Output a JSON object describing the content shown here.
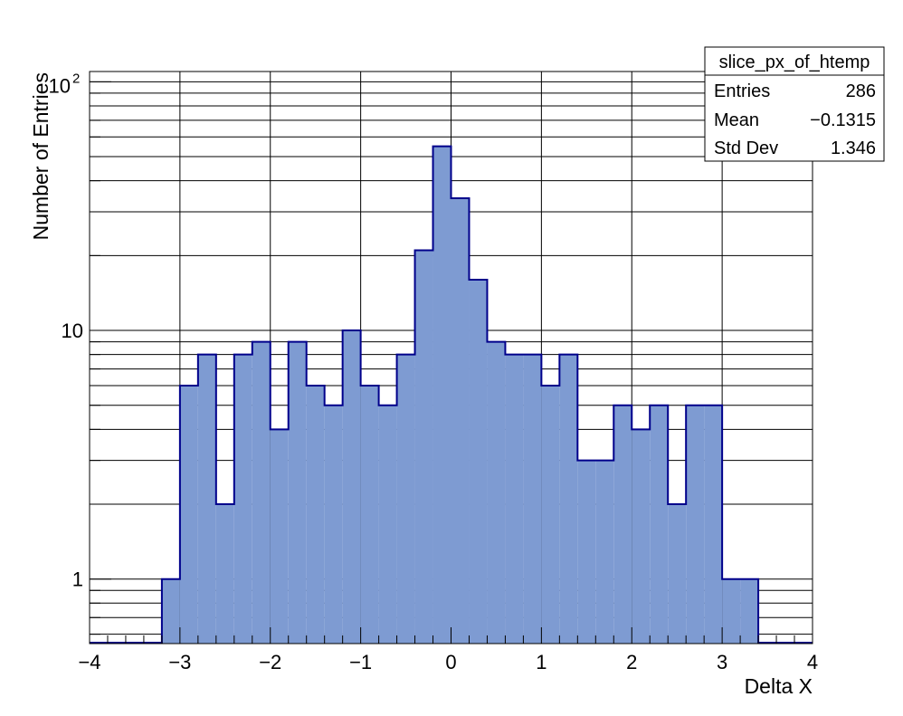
{
  "chart_data": {
    "type": "bar",
    "histogram": true,
    "xlabel": "Delta X",
    "ylabel": "Number of Entries",
    "xlim": [
      -4,
      4
    ],
    "ylim": [
      0.55,
      110
    ],
    "y_scale": "log",
    "grid": true,
    "bin_width": 0.2,
    "x_ticks": [
      "−4",
      "−3",
      "−2",
      "−1",
      "0",
      "1",
      "2",
      "3",
      "4"
    ],
    "x_tick_values": [
      -4,
      -3,
      -2,
      -1,
      0,
      1,
      2,
      3,
      4
    ],
    "y_ticks": [
      {
        "value": 1,
        "label": "1"
      },
      {
        "value": 10,
        "label": "10"
      },
      {
        "value": 100,
        "label_base": "10",
        "label_exp": "2"
      }
    ],
    "bins": [
      {
        "x": -3.2,
        "value": 1
      },
      {
        "x": -3.0,
        "value": 6
      },
      {
        "x": -2.8,
        "value": 8
      },
      {
        "x": -2.6,
        "value": 2
      },
      {
        "x": -2.4,
        "value": 8
      },
      {
        "x": -2.2,
        "value": 9
      },
      {
        "x": -2.0,
        "value": 4
      },
      {
        "x": -1.8,
        "value": 9
      },
      {
        "x": -1.6,
        "value": 6
      },
      {
        "x": -1.4,
        "value": 5
      },
      {
        "x": -1.2,
        "value": 10
      },
      {
        "x": -1.0,
        "value": 6
      },
      {
        "x": -0.8,
        "value": 5
      },
      {
        "x": -0.6,
        "value": 8
      },
      {
        "x": -0.4,
        "value": 21
      },
      {
        "x": -0.2,
        "value": 55
      },
      {
        "x": 0.0,
        "value": 34
      },
      {
        "x": 0.2,
        "value": 16
      },
      {
        "x": 0.4,
        "value": 9
      },
      {
        "x": 0.6,
        "value": 8
      },
      {
        "x": 0.8,
        "value": 8
      },
      {
        "x": 1.0,
        "value": 6
      },
      {
        "x": 1.2,
        "value": 8
      },
      {
        "x": 1.4,
        "value": 3
      },
      {
        "x": 1.6,
        "value": 3
      },
      {
        "x": 1.8,
        "value": 5
      },
      {
        "x": 2.0,
        "value": 4
      },
      {
        "x": 2.2,
        "value": 5
      },
      {
        "x": 2.4,
        "value": 2
      },
      {
        "x": 2.6,
        "value": 5
      },
      {
        "x": 2.8,
        "value": 5
      },
      {
        "x": 3.0,
        "value": 1
      },
      {
        "x": 3.2,
        "value": 1
      }
    ],
    "colors": {
      "fill": "#7e9bd2",
      "line": "#00008b",
      "grid": "#000000"
    },
    "stats_box": {
      "title": "slice_px_of_htemp",
      "rows": [
        {
          "label": "Entries",
          "value": "286"
        },
        {
          "label": "Mean",
          "value": "−0.1315"
        },
        {
          "label": "Std Dev",
          "value": "1.346"
        }
      ]
    }
  }
}
